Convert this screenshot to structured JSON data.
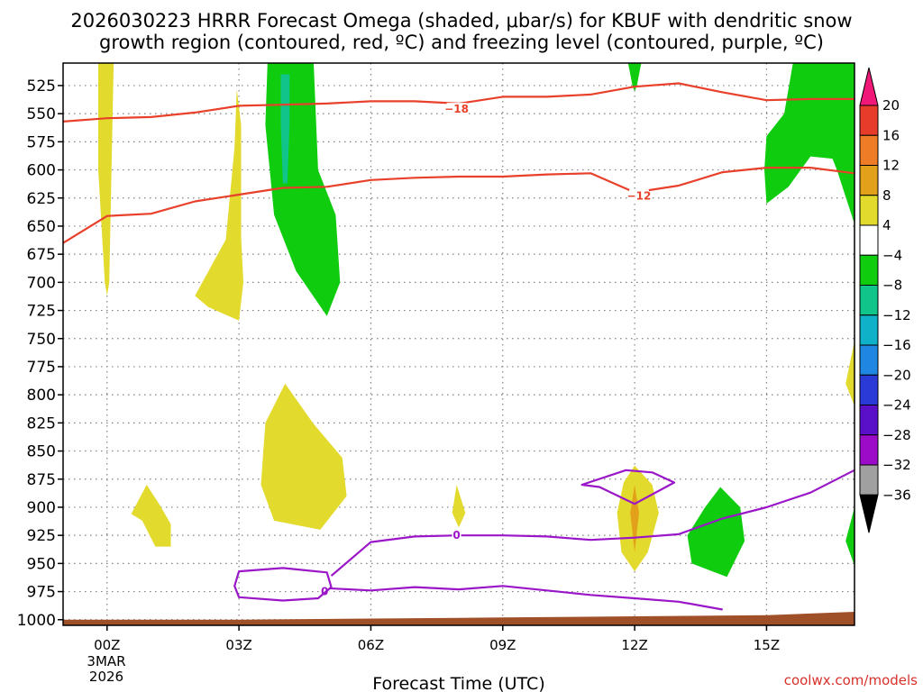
{
  "chart_data": {
    "type": "contour",
    "title": "2026030223 HRRR Forecast Omega (shaded, μbar/s) for KBUF with dendritic snow",
    "title_line2": "growth region (contoured, red, ºC) and freezing level (contoured, purple, ºC)",
    "xlabel": "Forecast Time (UTC)",
    "ylabel": "",
    "credit": "coolwx.com/models",
    "x_ticks": [
      {
        "hour": 0,
        "label": "00Z"
      },
      {
        "hour": 3,
        "label": "03Z"
      },
      {
        "hour": 6,
        "label": "06Z"
      },
      {
        "hour": 9,
        "label": "09Z"
      },
      {
        "hour": 12,
        "label": "12Z"
      },
      {
        "hour": 15,
        "label": "15Z"
      }
    ],
    "x_date_lines": [
      "3MAR",
      "2026"
    ],
    "x_range": [
      -1,
      17
    ],
    "y_ticks": [
      525,
      550,
      575,
      600,
      625,
      650,
      675,
      700,
      725,
      750,
      775,
      800,
      825,
      850,
      875,
      900,
      925,
      950,
      975,
      1000
    ],
    "y_range": [
      505,
      1005
    ],
    "colorbar": {
      "levels": [
        "20",
        "16",
        "12",
        "8",
        "4",
        "−4",
        "−8",
        "−12",
        "−16",
        "−20",
        "−24",
        "−28",
        "−32",
        "−36"
      ],
      "colors": [
        "#f01878",
        "#e83c2a",
        "#ee7b25",
        "#e3a11b",
        "#e3da2e",
        "#ffffff",
        "#0fcc0f",
        "#10c48a",
        "#0fb1c8",
        "#1f86e2",
        "#2a3ad6",
        "#5a10c8",
        "#9c0cc8",
        "#a0a0a0",
        "#000000"
      ]
    },
    "contours": [
      {
        "name": "dgz-minus-18",
        "kind": "dgz_temperature",
        "color": "#e8402a",
        "label": "−18",
        "label_hour": 7.95,
        "label_p": 546,
        "points": [
          [
            -1,
            557
          ],
          [
            0,
            554
          ],
          [
            1,
            553
          ],
          [
            2,
            549
          ],
          [
            3,
            543
          ],
          [
            4,
            542
          ],
          [
            5,
            541
          ],
          [
            6,
            539
          ],
          [
            7,
            539
          ],
          [
            8,
            541
          ],
          [
            9,
            535
          ],
          [
            10,
            535
          ],
          [
            11,
            533
          ],
          [
            12,
            526
          ],
          [
            13,
            523
          ],
          [
            14,
            531
          ],
          [
            15,
            538
          ],
          [
            16,
            537
          ],
          [
            17,
            537
          ]
        ]
      },
      {
        "name": "dgz-minus-12",
        "kind": "dgz_temperature",
        "color": "#e8402a",
        "label": "−12",
        "label_hour": 12.1,
        "label_p": 623,
        "points": [
          [
            -1,
            665
          ],
          [
            0,
            641
          ],
          [
            1,
            639
          ],
          [
            2,
            628
          ],
          [
            3,
            622
          ],
          [
            4,
            616
          ],
          [
            5,
            615
          ],
          [
            6,
            609
          ],
          [
            7,
            607
          ],
          [
            8,
            606
          ],
          [
            9,
            606
          ],
          [
            10,
            604
          ],
          [
            11,
            603
          ],
          [
            12,
            620
          ],
          [
            13,
            614
          ],
          [
            14,
            602
          ],
          [
            15,
            598
          ],
          [
            16,
            598
          ],
          [
            17,
            603
          ]
        ]
      },
      {
        "name": "freezing-level-main",
        "kind": "freezing_level",
        "color": "#9a16c8",
        "label": "0",
        "label_hour": 7.95,
        "label_p": 925,
        "points": [
          [
            5.1,
            961
          ],
          [
            6,
            931
          ],
          [
            7,
            926
          ],
          [
            8,
            925
          ],
          [
            9,
            925
          ],
          [
            10,
            926
          ],
          [
            11,
            929
          ],
          [
            12,
            927
          ],
          [
            13,
            924
          ],
          [
            14,
            910
          ],
          [
            15,
            900
          ],
          [
            16,
            887
          ],
          [
            17,
            867
          ]
        ]
      },
      {
        "name": "freezing-level-lower",
        "kind": "freezing_level",
        "color": "#9a16c8",
        "label": "0",
        "label_hour": 4.95,
        "label_p": 975,
        "points": [
          [
            5.0,
            972
          ],
          [
            6,
            974
          ],
          [
            7,
            971
          ],
          [
            8,
            973
          ],
          [
            9,
            970
          ],
          [
            10,
            974
          ],
          [
            11,
            978
          ],
          [
            12,
            981
          ],
          [
            13,
            984
          ],
          [
            14,
            991
          ]
        ]
      },
      {
        "name": "freezing-level-loop-left",
        "kind": "freezing_level",
        "color": "#9a16c8",
        "closed": true,
        "points": [
          [
            3.0,
            957
          ],
          [
            4,
            954
          ],
          [
            5,
            958
          ],
          [
            5.1,
            971
          ],
          [
            4.8,
            981
          ],
          [
            4,
            983
          ],
          [
            3,
            980
          ],
          [
            2.9,
            970
          ]
        ]
      },
      {
        "name": "freezing-level-loop-right",
        "kind": "freezing_level",
        "color": "#9a16c8",
        "closed": true,
        "points": [
          [
            10.8,
            880
          ],
          [
            11.8,
            867
          ],
          [
            12.4,
            869
          ],
          [
            12.9,
            878
          ],
          [
            12,
            897
          ],
          [
            11.2,
            882
          ]
        ]
      }
    ],
    "shaded_regions": [
      {
        "name": "omega-yellow-00z-upper",
        "omega": "4 to 8",
        "color": "#e3da2e",
        "points": [
          [
            -0.2,
            505
          ],
          [
            0.15,
            505
          ],
          [
            0.05,
            700
          ],
          [
            0,
            712
          ],
          [
            -0.05,
            700
          ],
          [
            -0.2,
            600
          ]
        ]
      },
      {
        "name": "omega-yellow-03z",
        "omega": "4 to 8",
        "color": "#e3da2e",
        "points": [
          [
            2.95,
            528
          ],
          [
            3.05,
            560
          ],
          [
            3.05,
            660
          ],
          [
            3.1,
            700
          ],
          [
            3.0,
            734
          ],
          [
            2.3,
            722
          ],
          [
            2.0,
            712
          ],
          [
            2.7,
            662
          ],
          [
            2.9,
            580
          ]
        ]
      },
      {
        "name": "omega-green-04z",
        "omega": "-4 to -8",
        "color": "#0fcc0f",
        "points": [
          [
            3.65,
            505
          ],
          [
            4.7,
            505
          ],
          [
            4.8,
            600
          ],
          [
            5.2,
            640
          ],
          [
            5.3,
            700
          ],
          [
            5.0,
            730
          ],
          [
            4.3,
            690
          ],
          [
            3.8,
            640
          ],
          [
            3.6,
            560
          ]
        ]
      },
      {
        "name": "omega-teal-04z",
        "omega": "-8 to -12",
        "color": "#10c48a",
        "points": [
          [
            3.95,
            515
          ],
          [
            4.15,
            515
          ],
          [
            4.15,
            560
          ],
          [
            4.1,
            612
          ],
          [
            4.0,
            612
          ],
          [
            3.95,
            560
          ]
        ]
      },
      {
        "name": "omega-yellow-04z-lower",
        "omega": "4 to 8",
        "color": "#e3da2e",
        "points": [
          [
            4.05,
            790
          ],
          [
            4.7,
            826
          ],
          [
            5.35,
            856
          ],
          [
            5.45,
            890
          ],
          [
            4.85,
            920
          ],
          [
            3.8,
            912
          ],
          [
            3.5,
            880
          ],
          [
            3.6,
            825
          ]
        ]
      },
      {
        "name": "omega-yellow-01z-lower",
        "omega": "4 to 8",
        "color": "#e3da2e",
        "points": [
          [
            0.9,
            880
          ],
          [
            1.2,
            898
          ],
          [
            1.45,
            915
          ],
          [
            1.45,
            935
          ],
          [
            1.1,
            935
          ],
          [
            0.8,
            912
          ],
          [
            0.55,
            906
          ]
        ]
      },
      {
        "name": "omega-yellow-08z-lower",
        "omega": "4 to 8",
        "color": "#e3da2e",
        "points": [
          [
            7.95,
            880
          ],
          [
            8.15,
            905
          ],
          [
            8.0,
            918
          ],
          [
            7.85,
            905
          ]
        ]
      },
      {
        "name": "omega-yellow-12z",
        "omega": "4 to 8",
        "color": "#e3da2e",
        "points": [
          [
            12.0,
            863
          ],
          [
            12.4,
            880
          ],
          [
            12.55,
            905
          ],
          [
            12.3,
            940
          ],
          [
            12.0,
            957
          ],
          [
            11.7,
            940
          ],
          [
            11.6,
            905
          ],
          [
            11.75,
            878
          ]
        ]
      },
      {
        "name": "omega-orange-12z",
        "omega": "8 to 12",
        "color": "#e3a11b",
        "points": [
          [
            12.0,
            880
          ],
          [
            12.1,
            905
          ],
          [
            12.0,
            940
          ],
          [
            11.9,
            905
          ]
        ]
      },
      {
        "name": "omega-green-12z-top",
        "omega": "-4 to -8",
        "color": "#0fcc0f",
        "points": [
          [
            11.85,
            505
          ],
          [
            12.15,
            505
          ],
          [
            12.05,
            525
          ],
          [
            12.0,
            530
          ],
          [
            11.95,
            525
          ]
        ]
      },
      {
        "name": "omega-green-14z",
        "omega": "-4 to -8",
        "color": "#0fcc0f",
        "points": [
          [
            13.95,
            882
          ],
          [
            14.4,
            900
          ],
          [
            14.5,
            930
          ],
          [
            14.1,
            962
          ],
          [
            13.3,
            950
          ],
          [
            13.2,
            925
          ],
          [
            13.6,
            900
          ]
        ]
      },
      {
        "name": "omega-green-16z",
        "omega": "-4 to -8",
        "color": "#0fcc0f",
        "points": [
          [
            15.6,
            505
          ],
          [
            17,
            505
          ],
          [
            17,
            648
          ],
          [
            16.6,
            600
          ],
          [
            16.5,
            590
          ],
          [
            16,
            588
          ],
          [
            15.5,
            615
          ],
          [
            15.0,
            630
          ],
          [
            14.95,
            600
          ],
          [
            15.0,
            570
          ],
          [
            15.4,
            550
          ]
        ]
      },
      {
        "name": "omega-yellow-17z-right",
        "omega": "4 to 8",
        "color": "#e3da2e",
        "points": [
          [
            17,
            752
          ],
          [
            17,
            810
          ],
          [
            16.8,
            790
          ]
        ]
      },
      {
        "name": "omega-green-17z-right",
        "omega": "-4 to -8",
        "color": "#0fcc0f",
        "points": [
          [
            17,
            900
          ],
          [
            17,
            952
          ],
          [
            16.8,
            930
          ]
        ]
      }
    ],
    "terrain": {
      "name": "terrain",
      "color": "#a05028",
      "points": [
        [
          -1,
          1005
        ],
        [
          -1,
          1000
        ],
        [
          3,
          1000
        ],
        [
          6,
          999
        ],
        [
          9,
          998
        ],
        [
          12,
          997
        ],
        [
          15,
          996
        ],
        [
          17,
          993
        ],
        [
          17,
          1005
        ]
      ]
    }
  }
}
